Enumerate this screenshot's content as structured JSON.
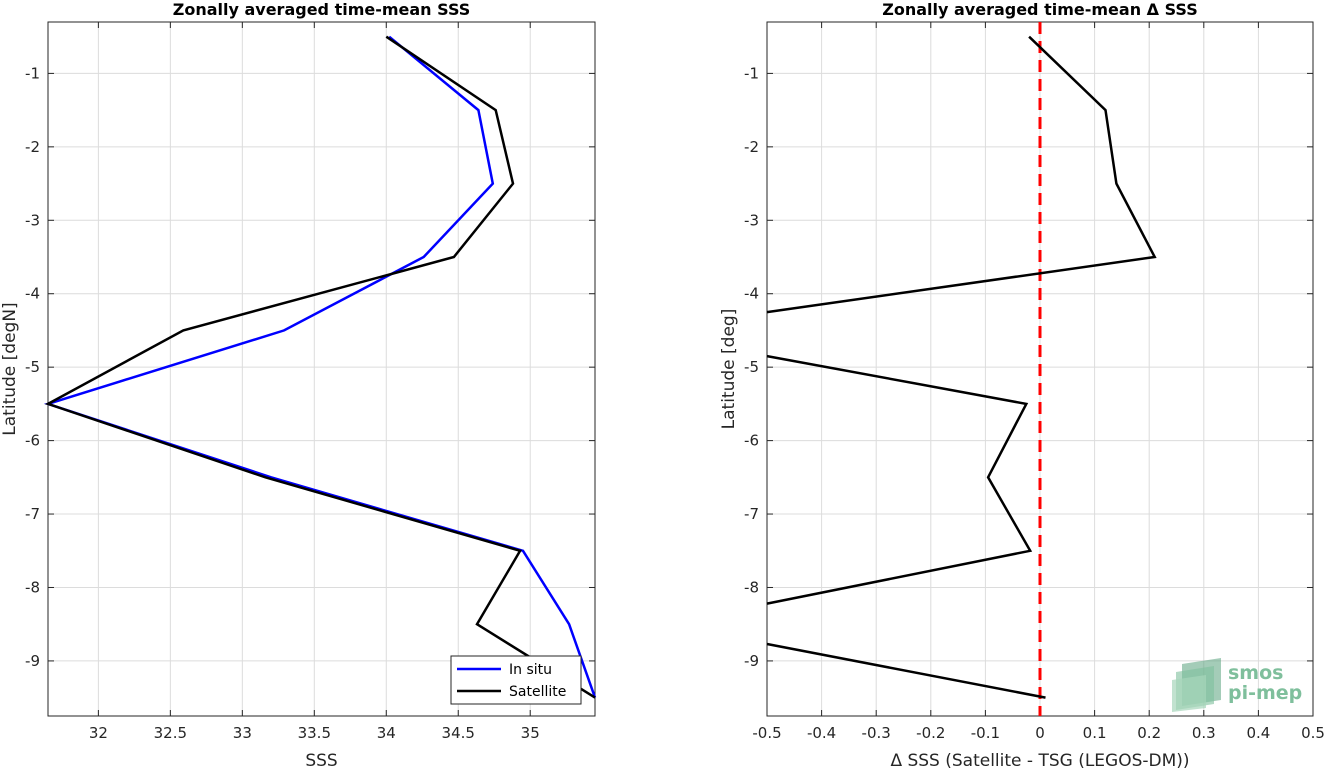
{
  "chart_data": [
    {
      "type": "line",
      "title": "Zonally averaged time-mean SSS",
      "xlabel": "SSS",
      "ylabel": "Latitude [degN]",
      "xlim": [
        31.65,
        35.45
      ],
      "ylim": [
        -9.75,
        -0.3
      ],
      "xticks": [
        "32",
        "32.5",
        "33",
        "33.5",
        "34",
        "34.5",
        "35"
      ],
      "xtick_values": [
        32,
        32.5,
        33,
        33.5,
        34,
        34.5,
        35
      ],
      "yticks": [
        "-1",
        "-2",
        "-3",
        "-4",
        "-5",
        "-6",
        "-7",
        "-8",
        "-9"
      ],
      "ytick_values": [
        -1,
        -2,
        -3,
        -4,
        -5,
        -6,
        -7,
        -8,
        -9
      ],
      "grid": true,
      "legend_position": "bottom-right",
      "series": [
        {
          "name": "In situ",
          "color": "#0000ff",
          "x": [
            34.02,
            34.64,
            34.74,
            34.26,
            33.29,
            31.65,
            33.2,
            34.95,
            35.27,
            35.45
          ],
          "y": [
            -0.5,
            -1.5,
            -2.5,
            -3.5,
            -4.5,
            -5.5,
            -6.5,
            -7.5,
            -8.5,
            -9.5
          ]
        },
        {
          "name": "Satellite",
          "color": "#000000",
          "x": [
            34.0,
            34.76,
            34.88,
            34.47,
            32.59,
            31.65,
            33.16,
            34.93,
            34.63,
            35.45
          ],
          "y": [
            -0.5,
            -1.5,
            -2.5,
            -3.5,
            -4.5,
            -5.5,
            -6.5,
            -7.5,
            -8.5,
            -9.5
          ]
        }
      ]
    },
    {
      "type": "line",
      "title": "Zonally averaged time-mean Δ SSS",
      "xlabel": "Δ SSS (Satellite - TSG (LEGOS-DM))",
      "ylabel": "Latitude [deg]",
      "xlim": [
        -0.5,
        0.5
      ],
      "ylim": [
        -9.75,
        -0.3
      ],
      "xticks": [
        "-0.5",
        "-0.4",
        "-0.3",
        "-0.2",
        "-0.1",
        "0",
        "0.1",
        "0.2",
        "0.3",
        "0.4",
        "0.5"
      ],
      "xtick_values": [
        -0.5,
        -0.4,
        -0.3,
        -0.2,
        -0.1,
        0,
        0.1,
        0.2,
        0.3,
        0.4,
        0.5
      ],
      "yticks": [
        "-1",
        "-2",
        "-3",
        "-4",
        "-5",
        "-6",
        "-7",
        "-8",
        "-9"
      ],
      "ytick_values": [
        -1,
        -2,
        -3,
        -4,
        -5,
        -6,
        -7,
        -8,
        -9
      ],
      "grid": true,
      "series": [
        {
          "color": "#000000",
          "x": [
            -0.02,
            0.12,
            0.14,
            0.21,
            -0.5,
            null,
            -0.5,
            -0.025,
            -0.095,
            -0.018,
            -0.5,
            null,
            -0.5,
            0.01
          ],
          "y": [
            -0.5,
            -1.5,
            -2.5,
            -3.5,
            -4.25,
            null,
            -4.85,
            -5.5,
            -6.5,
            -7.5,
            -8.22,
            null,
            -8.77,
            -9.5
          ]
        }
      ],
      "reference_line": {
        "x": 0,
        "color": "#ff0000",
        "style": "dashed"
      }
    }
  ],
  "logo": {
    "line1": "smos",
    "line2": "pi-mep",
    "color": "#7fbf9c"
  }
}
